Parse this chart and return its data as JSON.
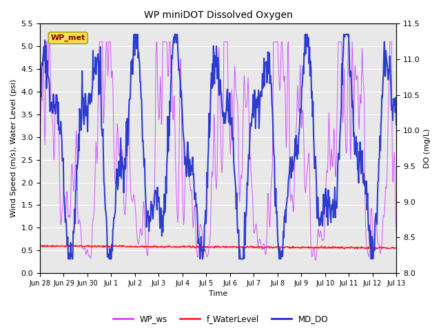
{
  "title": "WP miniDOT Dissolved Oxygen",
  "ylabel_left": "Wind Speed (m/s), Water Level (psi)",
  "ylabel_right": "DO (mg/L)",
  "xlabel": "Time",
  "ylim_left": [
    0.0,
    5.5
  ],
  "ylim_right": [
    8.0,
    11.5
  ],
  "yticks_left": [
    0.0,
    0.5,
    1.0,
    1.5,
    2.0,
    2.5,
    3.0,
    3.5,
    4.0,
    4.5,
    5.0,
    5.5
  ],
  "yticks_right": [
    8.0,
    8.5,
    9.0,
    9.5,
    10.0,
    10.5,
    11.0,
    11.5
  ],
  "xlim": [
    0,
    15
  ],
  "xtick_labels": [
    "Jun 28",
    "Jun 29",
    "Jun 30",
    "Jul 1",
    "Jul 2",
    "Jul 3",
    "Jul 4",
    "Jul 5",
    "Jul 6",
    "Jul 7",
    "Jul 8",
    "Jul 9",
    "Jul 10",
    "Jul 11",
    "Jul 12",
    "Jul 13"
  ],
  "xtick_positions": [
    0,
    1,
    2,
    3,
    4,
    5,
    6,
    7,
    8,
    9,
    10,
    11,
    12,
    13,
    14,
    15
  ],
  "background_color": "#e8e8e8",
  "annotation_text": "WP_met",
  "annotation_color": "#8b0000",
  "annotation_bg": "#f5e050",
  "legend_labels": [
    "WP_ws",
    "f_WaterLevel",
    "MD_DO"
  ],
  "legend_colors": [
    "#cc44ff",
    "#ff2222",
    "#2222cc"
  ],
  "wp_ws_color": "#cc44ff",
  "f_waterlevel_color": "#ff2222",
  "md_do_color": "#2233cc",
  "wp_ws_lw": 0.7,
  "f_waterlevel_lw": 1.2,
  "md_do_lw": 1.5,
  "figsize": [
    6.4,
    4.8
  ],
  "dpi": 100
}
